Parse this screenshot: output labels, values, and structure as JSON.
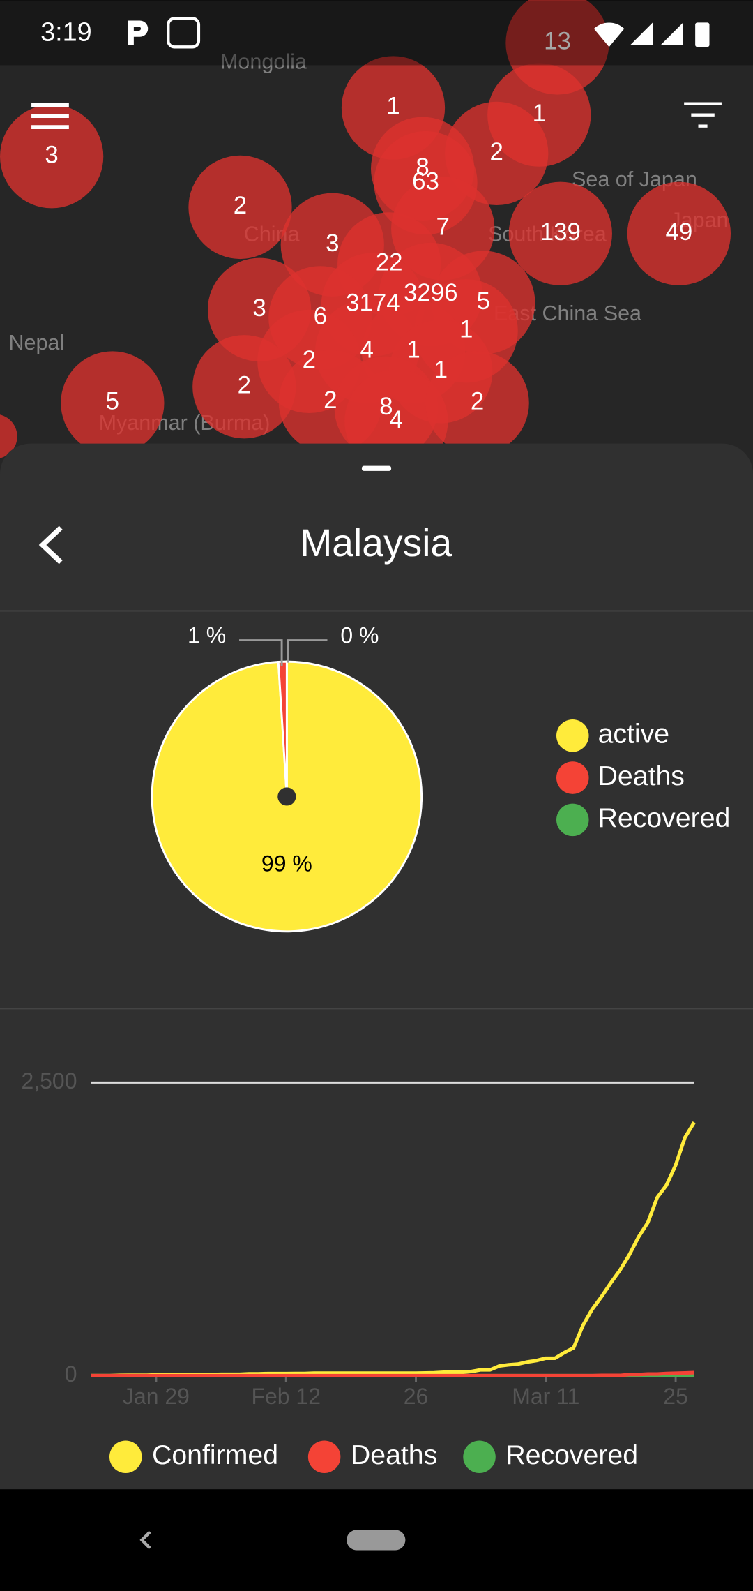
{
  "status_bar": {
    "time": "3:19"
  },
  "map": {
    "places": [
      "Mongolia",
      "China",
      "Nepal",
      "Sea of Japan",
      "Japan",
      "South Korea",
      "East China Sea",
      "Myanmar (Burma)"
    ],
    "clusters": [
      "13",
      "1",
      "1",
      "3",
      "2",
      "2",
      "8",
      "63",
      "7",
      "139",
      "49",
      "3",
      "22",
      "3",
      "3174",
      "3296",
      "5",
      "6",
      "1",
      "4",
      "1",
      "2",
      "1",
      "2",
      "5",
      "2",
      "8",
      "4",
      "2"
    ]
  },
  "sheet": {
    "title": "Malaysia"
  },
  "chart_data": [
    {
      "type": "pie",
      "categories": [
        "active",
        "Deaths",
        "Recovered"
      ],
      "values": [
        99,
        1,
        0
      ],
      "value_labels": [
        "99 %",
        "1 %",
        "0 %"
      ],
      "colors": [
        "#ffeb3b",
        "#f44336",
        "#4caf50"
      ]
    },
    {
      "type": "line",
      "x": [
        "Jan 22",
        "Jan 23",
        "Jan 24",
        "Jan 25",
        "Jan 26",
        "Jan 27",
        "Jan 28",
        "Jan 29",
        "Jan 30",
        "Jan 31",
        "Feb 1",
        "Feb 2",
        "Feb 3",
        "Feb 4",
        "Feb 5",
        "Feb 6",
        "Feb 7",
        "Feb 8",
        "Feb 9",
        "Feb 10",
        "Feb 11",
        "Feb 12",
        "Feb 13",
        "Feb 14",
        "Feb 15",
        "Feb 16",
        "Feb 17",
        "Feb 18",
        "Feb 19",
        "Feb 20",
        "Feb 21",
        "Feb 22",
        "Feb 23",
        "Feb 24",
        "Feb 25",
        "Feb 26",
        "Feb 27",
        "Feb 28",
        "Feb 29",
        "Mar 1",
        "Mar 2",
        "Mar 3",
        "Mar 4",
        "Mar 5",
        "Mar 6",
        "Mar 7",
        "Mar 8",
        "Mar 9",
        "Mar 10",
        "Mar 11",
        "Mar 12",
        "Mar 13",
        "Mar 14",
        "Mar 15",
        "Mar 16",
        "Mar 17",
        "Mar 18",
        "Mar 19",
        "Mar 20",
        "Mar 21",
        "Mar 22",
        "Mar 23",
        "Mar 24",
        "Mar 25",
        "Mar 26",
        "Mar 27"
      ],
      "series": [
        {
          "name": "Confirmed",
          "color": "#ffeb3b",
          "values": [
            0,
            0,
            0,
            3,
            4,
            4,
            4,
            7,
            8,
            8,
            8,
            8,
            8,
            10,
            12,
            12,
            12,
            16,
            16,
            18,
            18,
            18,
            19,
            19,
            22,
            22,
            22,
            22,
            22,
            22,
            22,
            22,
            22,
            22,
            22,
            22,
            23,
            25,
            29,
            29,
            29,
            36,
            50,
            50,
            83,
            93,
            99,
            117,
            129,
            149,
            149,
            197,
            238,
            428,
            566,
            673,
            790,
            900,
            1030,
            1183,
            1306,
            1518,
            1624,
            1796,
            2031,
            2161
          ]
        },
        {
          "name": "Deaths",
          "color": "#f44336",
          "values": [
            0,
            0,
            0,
            0,
            0,
            0,
            0,
            0,
            0,
            0,
            0,
            0,
            0,
            0,
            0,
            0,
            0,
            0,
            0,
            0,
            0,
            0,
            0,
            0,
            0,
            0,
            0,
            0,
            0,
            0,
            0,
            0,
            0,
            0,
            0,
            0,
            0,
            0,
            0,
            0,
            0,
            0,
            0,
            0,
            0,
            0,
            0,
            0,
            0,
            0,
            0,
            0,
            0,
            0,
            0,
            2,
            2,
            2,
            10,
            10,
            14,
            14,
            19,
            21,
            23,
            26
          ]
        },
        {
          "name": "Recovered",
          "color": "#4caf50",
          "values": [
            0,
            0,
            0,
            0,
            0,
            0,
            0,
            0,
            0,
            0,
            0,
            0,
            0,
            0,
            0,
            0,
            0,
            0,
            0,
            0,
            0,
            0,
            0,
            0,
            0,
            0,
            0,
            0,
            0,
            0,
            0,
            0,
            0,
            0,
            0,
            0,
            0,
            0,
            0,
            0,
            0,
            0,
            0,
            0,
            0,
            0,
            0,
            0,
            0,
            0,
            0,
            0,
            0,
            0,
            0,
            0,
            0,
            0,
            0,
            0,
            0,
            0,
            0,
            0,
            0,
            0
          ]
        }
      ],
      "ylim": [
        0,
        2500
      ],
      "yticks": [
        0,
        {
          "value": 2500,
          "label": "2,500"
        }
      ],
      "xticks": [
        {
          "value": "Jan 29",
          "label": "Jan 29"
        },
        {
          "value": "Feb 12",
          "label": "Feb 12"
        },
        {
          "value": "Feb 26",
          "label": "26"
        },
        {
          "value": "Mar 11",
          "label": "Mar 11"
        },
        {
          "value": "Mar 25",
          "label": "25"
        }
      ],
      "grid": true
    }
  ]
}
